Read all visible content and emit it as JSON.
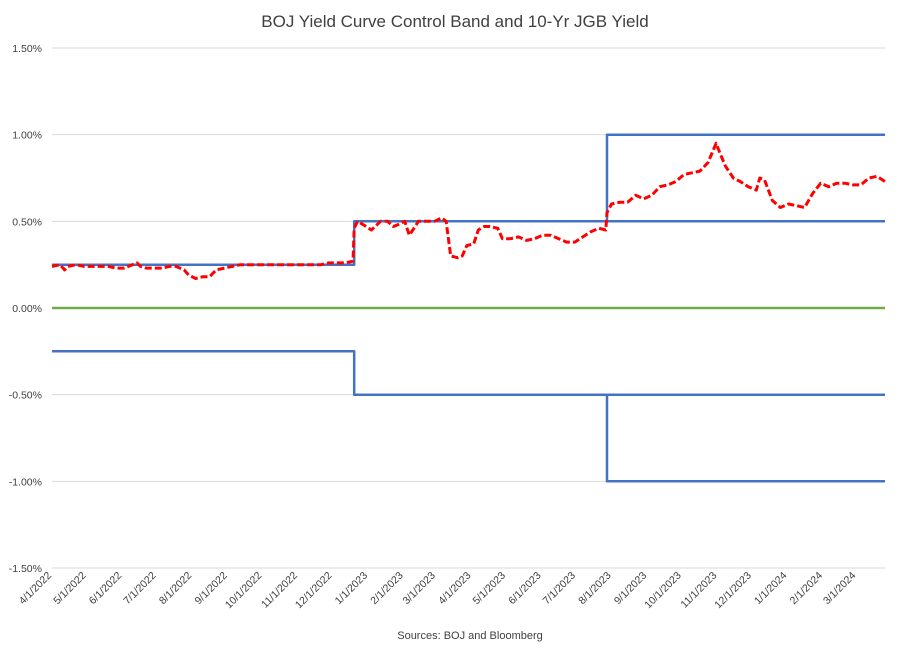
{
  "chart_data": {
    "type": "line",
    "title": "BOJ Yield Curve Control Band and 10-Yr JGB Yield",
    "source": "Sources: BOJ and Bloomberg",
    "xlabel": "",
    "ylabel": "",
    "x_range": [
      "2022-04-01",
      "2024-03-26"
    ],
    "ylim": [
      -1.5,
      1.5
    ],
    "y_ticks": [
      1.5,
      1.0,
      0.5,
      0.0,
      -0.5,
      -1.0,
      -1.5
    ],
    "y_tick_labels": [
      "1.50%",
      "1.00%",
      "0.50%",
      "0.00%",
      "-0.50%",
      "-1.00%",
      "-1.50%"
    ],
    "x_ticks": [
      "2022-04-01",
      "2022-05-01",
      "2022-06-01",
      "2022-07-01",
      "2022-08-01",
      "2022-09-01",
      "2022-10-01",
      "2022-11-01",
      "2022-12-01",
      "2023-01-01",
      "2023-02-01",
      "2023-03-01",
      "2023-04-01",
      "2023-05-01",
      "2023-06-01",
      "2023-07-01",
      "2023-08-01",
      "2023-09-01",
      "2023-10-01",
      "2023-11-01",
      "2023-12-01",
      "2024-01-01",
      "2024-02-01",
      "2024-03-01"
    ],
    "x_tick_labels": [
      "4/1/2022",
      "5/1/2022",
      "6/1/2022",
      "7/1/2022",
      "8/1/2022",
      "9/1/2022",
      "10/1/2022",
      "11/1/2022",
      "12/1/2022",
      "1/1/2023",
      "2/1/2023",
      "3/1/2023",
      "4/1/2023",
      "5/1/2023",
      "6/1/2023",
      "7/1/2023",
      "8/1/2023",
      "9/1/2023",
      "10/1/2023",
      "11/1/2023",
      "12/1/2023",
      "1/1/2024",
      "2/1/2024",
      "3/1/2024"
    ],
    "grid": true,
    "series": [
      {
        "color": "#ff0000",
        "style": "dashed",
        "points": [
          [
            "2022-04-01",
            0.24
          ],
          [
            "2022-04-08",
            0.25
          ],
          [
            "2022-04-12",
            0.22
          ],
          [
            "2022-04-15",
            0.24
          ],
          [
            "2022-04-22",
            0.25
          ],
          [
            "2022-04-29",
            0.24
          ],
          [
            "2022-05-06",
            0.24
          ],
          [
            "2022-05-13",
            0.24
          ],
          [
            "2022-05-20",
            0.24
          ],
          [
            "2022-05-27",
            0.23
          ],
          [
            "2022-06-03",
            0.23
          ],
          [
            "2022-06-10",
            0.25
          ],
          [
            "2022-06-14",
            0.26
          ],
          [
            "2022-06-17",
            0.24
          ],
          [
            "2022-06-22",
            0.23
          ],
          [
            "2022-06-30",
            0.23
          ],
          [
            "2022-07-06",
            0.23
          ],
          [
            "2022-07-12",
            0.24
          ],
          [
            "2022-07-18",
            0.24
          ],
          [
            "2022-07-25",
            0.22
          ],
          [
            "2022-07-29",
            0.19
          ],
          [
            "2022-08-04",
            0.17
          ],
          [
            "2022-08-10",
            0.18
          ],
          [
            "2022-08-16",
            0.18
          ],
          [
            "2022-08-22",
            0.22
          ],
          [
            "2022-08-29",
            0.23
          ],
          [
            "2022-09-05",
            0.24
          ],
          [
            "2022-09-12",
            0.25
          ],
          [
            "2022-09-20",
            0.25
          ],
          [
            "2022-09-26",
            0.25
          ],
          [
            "2022-10-03",
            0.25
          ],
          [
            "2022-10-10",
            0.25
          ],
          [
            "2022-10-17",
            0.25
          ],
          [
            "2022-10-24",
            0.25
          ],
          [
            "2022-10-31",
            0.25
          ],
          [
            "2022-11-07",
            0.25
          ],
          [
            "2022-11-14",
            0.25
          ],
          [
            "2022-11-21",
            0.25
          ],
          [
            "2022-11-28",
            0.26
          ],
          [
            "2022-12-05",
            0.26
          ],
          [
            "2022-12-12",
            0.26
          ],
          [
            "2022-12-19",
            0.27
          ],
          [
            "2022-12-20",
            0.46
          ],
          [
            "2022-12-23",
            0.5
          ],
          [
            "2022-12-28",
            0.48
          ],
          [
            "2023-01-04",
            0.45
          ],
          [
            "2023-01-12",
            0.5
          ],
          [
            "2023-01-18",
            0.5
          ],
          [
            "2023-01-23",
            0.47
          ],
          [
            "2023-01-27",
            0.48
          ],
          [
            "2023-02-02",
            0.5
          ],
          [
            "2023-02-06",
            0.42
          ],
          [
            "2023-02-09",
            0.45
          ],
          [
            "2023-02-14",
            0.5
          ],
          [
            "2023-02-21",
            0.5
          ],
          [
            "2023-02-28",
            0.5
          ],
          [
            "2023-03-06",
            0.52
          ],
          [
            "2023-03-10",
            0.5
          ],
          [
            "2023-03-14",
            0.3
          ],
          [
            "2023-03-20",
            0.29
          ],
          [
            "2023-03-24",
            0.3
          ],
          [
            "2023-03-28",
            0.36
          ],
          [
            "2023-04-03",
            0.37
          ],
          [
            "2023-04-07",
            0.45
          ],
          [
            "2023-04-12",
            0.47
          ],
          [
            "2023-04-17",
            0.47
          ],
          [
            "2023-04-24",
            0.46
          ],
          [
            "2023-04-28",
            0.4
          ],
          [
            "2023-05-05",
            0.4
          ],
          [
            "2023-05-12",
            0.41
          ],
          [
            "2023-05-19",
            0.39
          ],
          [
            "2023-05-26",
            0.4
          ],
          [
            "2023-06-02",
            0.42
          ],
          [
            "2023-06-09",
            0.42
          ],
          [
            "2023-06-16",
            0.4
          ],
          [
            "2023-06-23",
            0.38
          ],
          [
            "2023-06-30",
            0.38
          ],
          [
            "2023-07-07",
            0.41
          ],
          [
            "2023-07-14",
            0.44
          ],
          [
            "2023-07-21",
            0.46
          ],
          [
            "2023-07-27",
            0.45
          ],
          [
            "2023-07-28",
            0.55
          ],
          [
            "2023-08-01",
            0.6
          ],
          [
            "2023-08-08",
            0.61
          ],
          [
            "2023-08-15",
            0.61
          ],
          [
            "2023-08-22",
            0.65
          ],
          [
            "2023-08-29",
            0.63
          ],
          [
            "2023-09-05",
            0.65
          ],
          [
            "2023-09-12",
            0.7
          ],
          [
            "2023-09-19",
            0.71
          ],
          [
            "2023-09-26",
            0.73
          ],
          [
            "2023-10-03",
            0.77
          ],
          [
            "2023-10-10",
            0.78
          ],
          [
            "2023-10-17",
            0.79
          ],
          [
            "2023-10-24",
            0.84
          ],
          [
            "2023-10-31",
            0.95
          ],
          [
            "2023-11-03",
            0.9
          ],
          [
            "2023-11-08",
            0.82
          ],
          [
            "2023-11-15",
            0.75
          ],
          [
            "2023-11-21",
            0.73
          ],
          [
            "2023-11-28",
            0.7
          ],
          [
            "2023-12-05",
            0.68
          ],
          [
            "2023-12-08",
            0.75
          ],
          [
            "2023-12-12",
            0.74
          ],
          [
            "2023-12-19",
            0.62
          ],
          [
            "2023-12-26",
            0.58
          ],
          [
            "2024-01-02",
            0.6
          ],
          [
            "2024-01-09",
            0.59
          ],
          [
            "2024-01-16",
            0.58
          ],
          [
            "2024-01-23",
            0.66
          ],
          [
            "2024-01-30",
            0.72
          ],
          [
            "2024-02-06",
            0.7
          ],
          [
            "2024-02-13",
            0.72
          ],
          [
            "2024-02-20",
            0.72
          ],
          [
            "2024-02-27",
            0.71
          ],
          [
            "2024-03-05",
            0.71
          ],
          [
            "2024-03-12",
            0.75
          ],
          [
            "2024-03-19",
            0.76
          ],
          [
            "2024-03-26",
            0.73
          ]
        ]
      },
      {
        "color": "#4472c4",
        "style": "solid",
        "points": [
          [
            "2022-04-01",
            0.25
          ],
          [
            "2022-12-20",
            0.25
          ],
          [
            "2022-12-20",
            0.5
          ],
          [
            "2024-03-26",
            0.5
          ]
        ]
      },
      {
        "color": "#4472c4",
        "style": "solid",
        "points": [
          [
            "2022-04-01",
            -0.25
          ],
          [
            "2022-12-20",
            -0.25
          ],
          [
            "2022-12-20",
            -0.5
          ],
          [
            "2024-03-26",
            -0.5
          ]
        ]
      },
      {
        "color": "#4472c4",
        "style": "solid",
        "points": [
          [
            "2023-07-28",
            0.5
          ],
          [
            "2023-07-28",
            1.0
          ],
          [
            "2024-03-26",
            1.0
          ]
        ]
      },
      {
        "color": "#4472c4",
        "style": "solid",
        "points": [
          [
            "2023-07-28",
            -0.5
          ],
          [
            "2023-07-28",
            -1.0
          ],
          [
            "2024-03-26",
            -1.0
          ]
        ]
      },
      {
        "color": "#70ad47",
        "style": "solid",
        "points": [
          [
            "2022-04-01",
            0.0
          ],
          [
            "2024-03-26",
            0.0
          ]
        ]
      }
    ]
  }
}
